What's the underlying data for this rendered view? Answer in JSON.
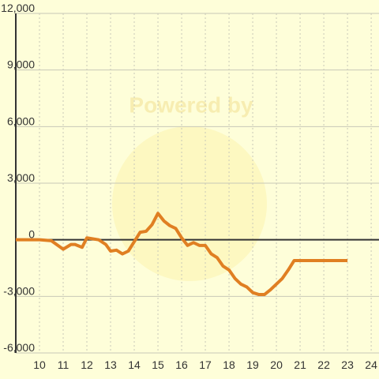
{
  "chart_data": {
    "type": "line",
    "watermark": "Powered by",
    "x": [
      9,
      10,
      10.5,
      11,
      11.33,
      11.5,
      11.8,
      12,
      12.5,
      12.8,
      13,
      13.25,
      13.5,
      13.75,
      14,
      14.25,
      14.5,
      14.75,
      15,
      15.25,
      15.5,
      15.75,
      16,
      16.25,
      16.5,
      16.75,
      17,
      17.25,
      17.5,
      17.75,
      18,
      18.25,
      18.5,
      18.75,
      19,
      19.25,
      19.5,
      19.75,
      20,
      20.25,
      20.5,
      20.75,
      21,
      23
    ],
    "series": [
      {
        "color": "#e07f22",
        "values": [
          0,
          0,
          -50,
          -500,
          -250,
          -250,
          -400,
          100,
          0,
          -250,
          -600,
          -550,
          -750,
          -600,
          -100,
          400,
          450,
          800,
          1400,
          1000,
          750,
          600,
          100,
          -300,
          -150,
          -300,
          -300,
          -750,
          -950,
          -1400,
          -1600,
          -2050,
          -2350,
          -2500,
          -2800,
          -2900,
          -2900,
          -2650,
          -2350,
          -2050,
          -1600,
          -1100,
          -1100,
          -1100
        ]
      }
    ],
    "xlim": [
      9,
      24.33
    ],
    "xticks": [
      10,
      11,
      12,
      13,
      14,
      15,
      16,
      17,
      18,
      19,
      20,
      21,
      22,
      23,
      24
    ],
    "ylim": [
      -6000,
      12000
    ],
    "yticks": [
      {
        "value": -6000,
        "label": "-6,000"
      },
      {
        "value": -3000,
        "label": "-3,000"
      },
      0,
      {
        "value": 3000,
        "label": "3,000"
      },
      {
        "value": 6000,
        "label": "6,000"
      },
      {
        "value": 9000,
        "label": "9,000"
      },
      {
        "value": 12000,
        "label": "12,000"
      }
    ],
    "grid": true
  }
}
